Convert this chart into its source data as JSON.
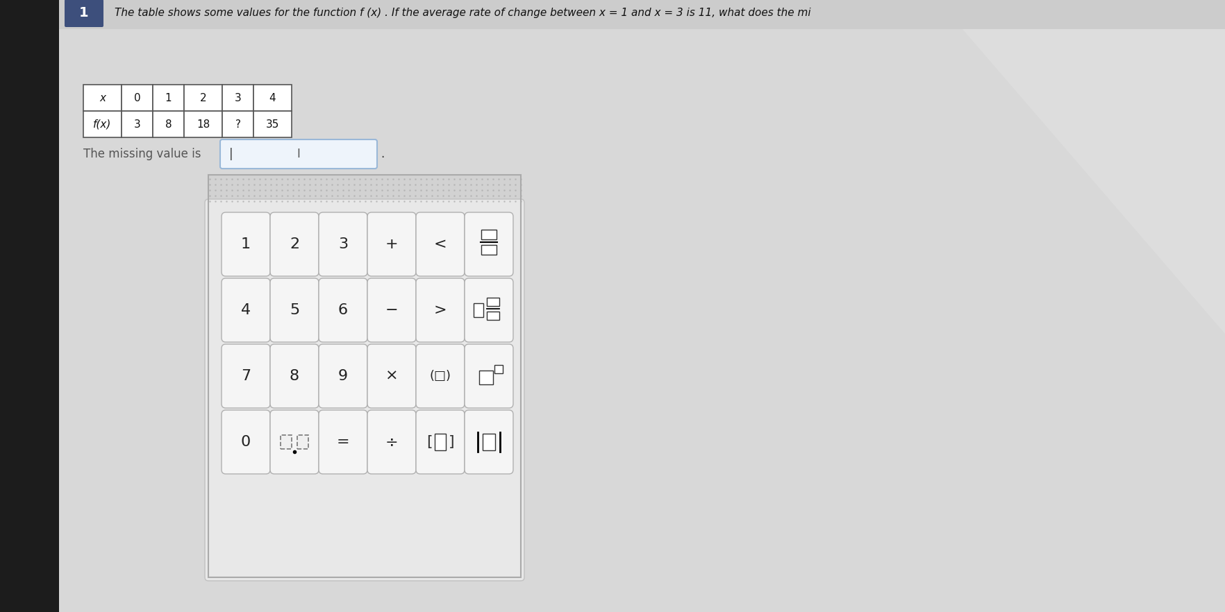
{
  "bg_color_left": "#1a1a1a",
  "bg_color_right": "#d8d8d8",
  "question_number": "1",
  "question_text": "The table shows some values for the function f (x) . If the average rate of change between x = 1 and x = 3 is 11, what does the mi",
  "table_x_vals": [
    "x",
    "0",
    "1",
    "2",
    "3",
    "4"
  ],
  "table_fx_vals": [
    "f(x)",
    "3",
    "8",
    "18",
    "?",
    "35"
  ],
  "missing_value_label": "The missing value is",
  "keypad_bg": "#e8e8e8",
  "keypad_border": "#c0c0c0",
  "button_bg": "#f5f5f5",
  "button_border": "#b0b0b0",
  "button_text_color": "#222222",
  "table_header_bg": "#ffffff",
  "table_cell_bg": "#ffffff",
  "table_border": "#555555",
  "question_num_bg": "#3d4f7c",
  "input_box_border": "#9ab8d8",
  "input_box_bg": "#eef4fb",
  "glare_color": "#ffffff"
}
